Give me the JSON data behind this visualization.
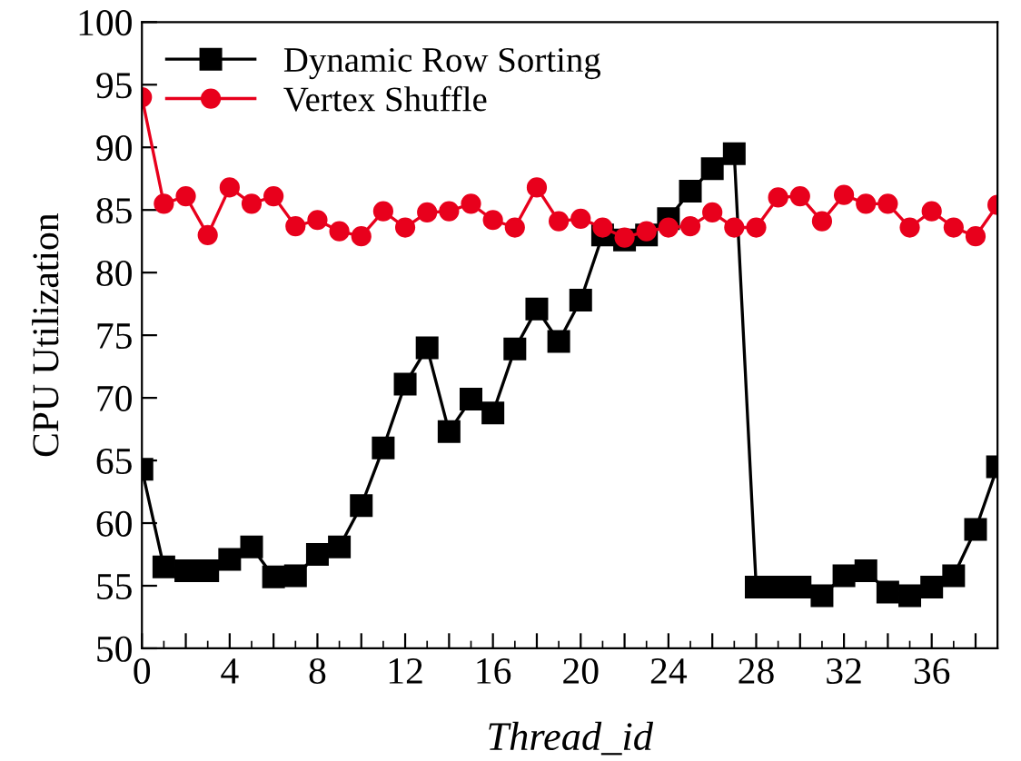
{
  "chart_data": {
    "type": "line",
    "xlabel": "Thread_id",
    "ylabel": "CPU Utilization",
    "x": [
      0,
      1,
      2,
      3,
      4,
      5,
      6,
      7,
      8,
      9,
      10,
      11,
      12,
      13,
      14,
      15,
      16,
      17,
      18,
      19,
      20,
      21,
      22,
      23,
      24,
      25,
      26,
      27,
      28,
      29,
      30,
      31,
      32,
      33,
      34,
      35,
      36,
      37,
      38,
      39
    ],
    "series": [
      {
        "name": "Dynamic Row Sorting",
        "color": "#000000",
        "marker": "square",
        "values": [
          64.3,
          56.5,
          56.2,
          56.2,
          57.1,
          58.1,
          55.7,
          55.8,
          57.5,
          58.1,
          61.4,
          66,
          71.1,
          74,
          67.3,
          69.9,
          68.8,
          73.9,
          77.1,
          74.5,
          77.8,
          83,
          82.6,
          83,
          84.3,
          86.5,
          88.3,
          89.5,
          54.9,
          54.9,
          54.9,
          54.2,
          55.8,
          56.2,
          54.5,
          54.2,
          54.9,
          55.8,
          59.5,
          64.5
        ]
      },
      {
        "name": "Vertex Shuffle",
        "color": "#e8001c",
        "marker": "circle",
        "values": [
          94,
          85.5,
          86.1,
          83,
          86.8,
          85.5,
          86.1,
          83.7,
          84.2,
          83.3,
          82.9,
          84.9,
          83.6,
          84.8,
          84.9,
          85.5,
          84.2,
          83.6,
          86.8,
          84.1,
          84.3,
          83.6,
          82.8,
          83.3,
          83.6,
          83.7,
          84.8,
          83.6,
          83.6,
          86,
          86.1,
          84.1,
          86.2,
          85.5,
          85.5,
          83.6,
          84.9,
          83.6,
          82.9,
          85.4
        ]
      }
    ],
    "xlim": [
      0,
      39
    ],
    "ylim": [
      50,
      100
    ],
    "xticks": [
      0,
      {
        "value": 2,
        "label": null
      },
      4,
      {
        "value": 6,
        "label": null
      },
      8,
      {
        "value": 10,
        "label": null
      },
      12,
      {
        "value": 14,
        "label": null
      },
      16,
      {
        "value": 18,
        "label": null
      },
      20,
      {
        "value": 22,
        "label": null
      },
      24,
      {
        "value": 26,
        "label": null
      },
      28,
      {
        "value": 30,
        "label": null
      },
      32,
      {
        "value": 34,
        "label": null
      },
      36,
      {
        "value": 38,
        "label": null
      }
    ],
    "yticks": [
      50,
      55,
      60,
      65,
      70,
      75,
      80,
      85,
      90,
      95,
      100
    ],
    "grid": false,
    "legend": "top left",
    "line_style": "solid"
  }
}
